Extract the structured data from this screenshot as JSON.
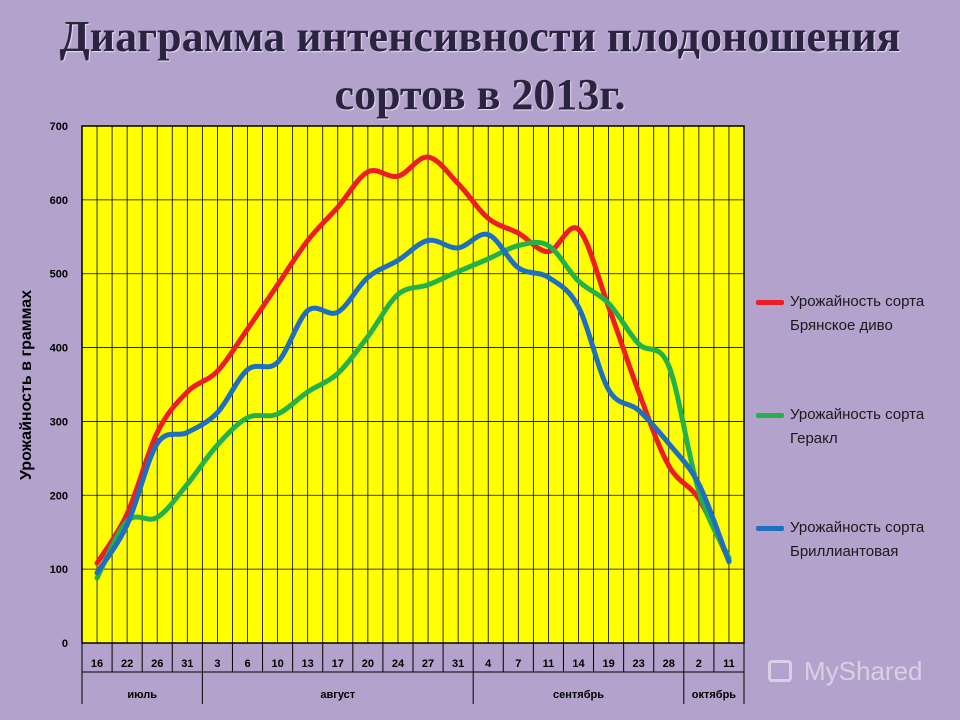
{
  "title_line1": "Диаграмма интенсивности плодоношения",
  "title_line2": "сортов в 2013г.",
  "watermark": "MyShared",
  "colors": {
    "background": "#b2a2cc",
    "plot": "#ffff00",
    "red": "#ee1c25",
    "green": "#22b14c",
    "blue": "#1f6fc0"
  },
  "chart_data": {
    "type": "line",
    "title": "Диаграмма интенсивности плодоношения сортов в 2013г.",
    "xlabel": "",
    "ylabel": "Урожайность в граммах",
    "ylim": [
      0,
      700
    ],
    "yticks": [
      0,
      100,
      200,
      300,
      400,
      500,
      600,
      700
    ],
    "grid": true,
    "legend_position": "right",
    "x": [
      "16",
      "22",
      "26",
      "31",
      "3",
      "6",
      "10",
      "13",
      "17",
      "20",
      "24",
      "27",
      "31",
      "4",
      "7",
      "11",
      "14",
      "19",
      "23",
      "28",
      "2",
      "11"
    ],
    "months": [
      {
        "label": "июль",
        "start": 0,
        "end": 4
      },
      {
        "label": "август",
        "start": 4,
        "end": 13
      },
      {
        "label": "сентябрь",
        "start": 13,
        "end": 20
      },
      {
        "label": "октябрь",
        "start": 20,
        "end": 22
      }
    ],
    "series": [
      {
        "name": "Урожайность сорта Брянское диво",
        "color": "#ee1c25",
        "values": [
          108,
          175,
          285,
          340,
          368,
          425,
          485,
          545,
          590,
          638,
          632,
          658,
          622,
          575,
          555,
          530,
          560,
          455,
          340,
          240,
          195,
          112
        ]
      },
      {
        "name": "Урожайность сорта Геракл",
        "color": "#22b14c",
        "values": [
          88,
          165,
          170,
          215,
          268,
          305,
          310,
          340,
          365,
          415,
          472,
          485,
          503,
          520,
          538,
          538,
          490,
          460,
          405,
          375,
          205,
          115
        ]
      },
      {
        "name": "Урожайность сорта Бриллиантовая",
        "color": "#1f6fc0",
        "values": [
          95,
          160,
          270,
          285,
          312,
          370,
          380,
          450,
          448,
          495,
          518,
          545,
          535,
          553,
          508,
          495,
          455,
          343,
          315,
          270,
          215,
          110
        ]
      }
    ]
  }
}
